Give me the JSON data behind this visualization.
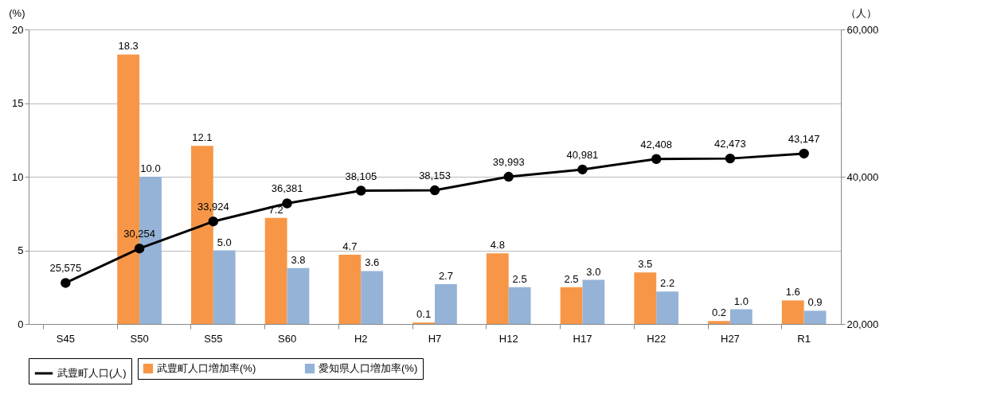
{
  "chart_data": {
    "type": "bar",
    "categories": [
      "S45",
      "S50",
      "S55",
      "S60",
      "H2",
      "H7",
      "H12",
      "H17",
      "H22",
      "H27",
      "R1"
    ],
    "series": [
      {
        "name": "武豊町人口増加率(%)",
        "color": "#f79646",
        "values": [
          null,
          18.3,
          12.1,
          7.2,
          4.7,
          0.1,
          4.8,
          2.5,
          3.5,
          0.2,
          1.6
        ],
        "value_labels": [
          null,
          "18.3",
          "12.1",
          "7.2",
          "4.7",
          "0.1",
          "4.8",
          "2.5",
          "3.5",
          "0.2",
          "1.6"
        ]
      },
      {
        "name": "愛知県人口増加率(%)",
        "color": "#95b3d7",
        "values": [
          null,
          10.0,
          5.0,
          3.8,
          3.6,
          2.7,
          2.5,
          3.0,
          2.2,
          1.0,
          0.9
        ],
        "value_labels": [
          null,
          "10.0",
          "5.0",
          "3.8",
          "3.6",
          "2.7",
          "2.5",
          "3.0",
          "2.2",
          "1.0",
          "0.9"
        ]
      },
      {
        "name": "武豊町人口(人)",
        "type": "line",
        "axis": "y2",
        "color": "#000000",
        "values": [
          25575,
          30254,
          33924,
          36381,
          38105,
          38153,
          39993,
          40981,
          42408,
          42473,
          43147
        ],
        "value_labels": [
          "25,575",
          "30,254",
          "33,924",
          "36,381",
          "38,105",
          "38,153",
          "39,993",
          "40,981",
          "42,408",
          "42,473",
          "43,147"
        ]
      }
    ],
    "ylabel": "(%)",
    "y2label": "（人）",
    "ylim": [
      0,
      20
    ],
    "yticks": [
      0,
      5,
      10,
      15,
      20
    ],
    "y2lim": [
      20000,
      60000
    ],
    "y2ticks": [
      {
        "value": 20000,
        "label": "20,000"
      },
      {
        "value": 40000,
        "label": "40,000"
      },
      {
        "value": 60000,
        "label": "60,000"
      }
    ],
    "grid": "y",
    "legend": "bottom",
    "marker": "circle",
    "line_style": "solid"
  }
}
